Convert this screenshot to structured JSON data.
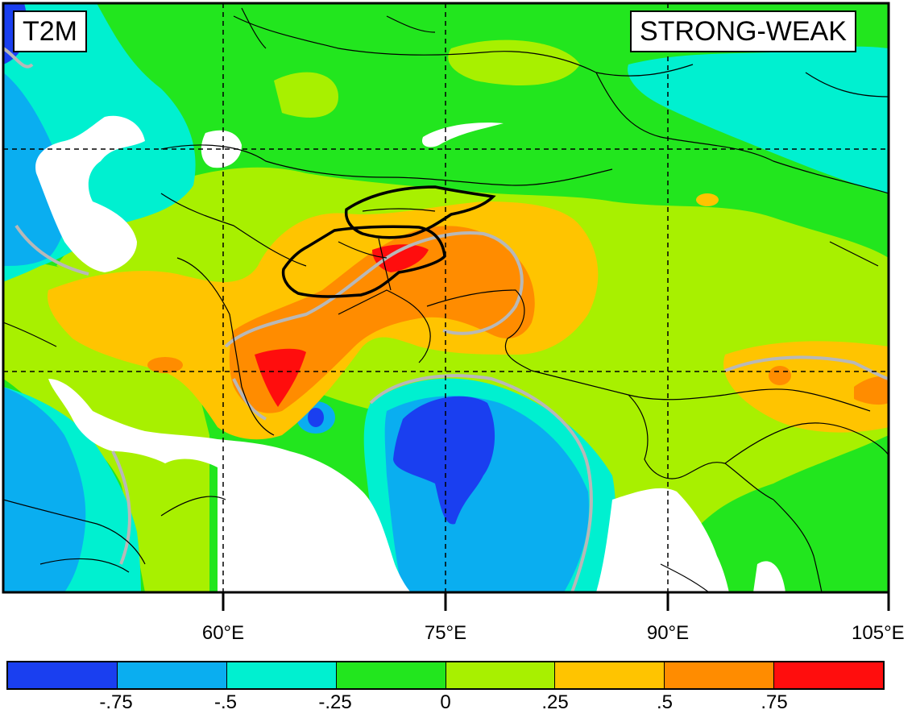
{
  "map": {
    "variable_label": "T2M",
    "difference_label": "STRONG-WEAK",
    "x_ticks": [
      "60°E",
      "75°E",
      "90°E",
      "105°E"
    ],
    "colorbar": {
      "colors": [
        "#1a3ff0",
        "#0aaef0",
        "#00f0d0",
        "#22e61e",
        "#a8f000",
        "#ffc400",
        "#ff8c00",
        "#ff0d0d"
      ],
      "labels": [
        "-.75",
        "-.5",
        "-.25",
        "0",
        ".25",
        ".5",
        ".75"
      ]
    }
  }
}
